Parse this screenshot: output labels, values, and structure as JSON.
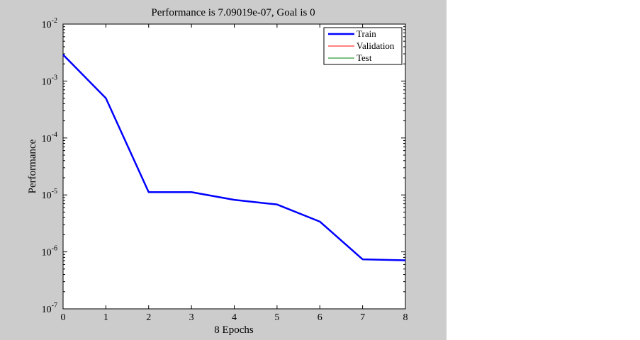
{
  "chart_data": {
    "type": "line",
    "title": "Performance is 7.09019e-07, Goal is 0",
    "xlabel": "8 Epochs",
    "ylabel": "Performance",
    "xlim": [
      0,
      8
    ],
    "ylim": [
      1e-07,
      0.01
    ],
    "yscale": "log",
    "x_ticks": [
      "0",
      "1",
      "2",
      "3",
      "4",
      "5",
      "6",
      "7",
      "8"
    ],
    "y_ticks": [
      {
        "base": "10",
        "exp": "-2",
        "value": 0.01
      },
      {
        "base": "10",
        "exp": "-3",
        "value": 0.001
      },
      {
        "base": "10",
        "exp": "-4",
        "value": 0.0001
      },
      {
        "base": "10",
        "exp": "-5",
        "value": 1e-05
      },
      {
        "base": "10",
        "exp": "-6",
        "value": 1e-06
      },
      {
        "base": "10",
        "exp": "-7",
        "value": 1e-07
      }
    ],
    "grid": false,
    "legend_position": "top-right",
    "series": [
      {
        "name": "Train",
        "color": "#0000ff",
        "x": [
          0,
          1,
          2,
          3,
          4,
          5,
          6,
          7,
          8
        ],
        "y": [
          0.0029,
          0.0005,
          1.12e-05,
          1.12e-05,
          8.2e-06,
          6.8e-06,
          3.4e-06,
          7.4e-07,
          7.1e-07
        ]
      },
      {
        "name": "Validation",
        "color": "#ff0000",
        "x": [],
        "y": []
      },
      {
        "name": "Test",
        "color": "#008000",
        "x": [],
        "y": []
      }
    ]
  }
}
